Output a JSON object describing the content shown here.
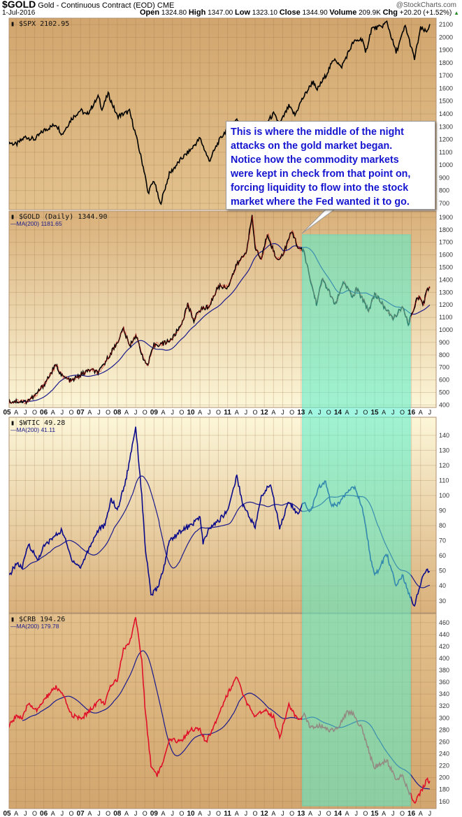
{
  "header": {
    "symbol": "$GOLD",
    "description": "Gold - Continuous Contract (EOD)",
    "exchange": "CME",
    "date": "1-Jul-2016",
    "open_label": "Open",
    "open": "1324.80",
    "high_label": "High",
    "high": "1347.00",
    "low_label": "Low",
    "low": "1323.10",
    "close_label": "Close",
    "close": "1344.90",
    "volume_label": "Volume",
    "volume": "209.9K",
    "chg_label": "Chg",
    "chg": "+20.20 (+1.52%)",
    "chg_icon": "up-triangle-icon",
    "brand": "@StockCharts.com"
  },
  "annotation": {
    "lines": [
      "This is where the middle of the night",
      "attacks on the gold market began.",
      "Notice how the commodity markets",
      "were kept in check from that point on,",
      "forcing liquidity to flow into the stock",
      "market where the Fed wanted it to go."
    ]
  },
  "colors": {
    "highlight": "#55f0cc",
    "annotation_text": "#1515d0",
    "ma_line": "#1a1a8c"
  },
  "x_axis_labels": [
    "05",
    "A",
    "J",
    "O",
    "06",
    "A",
    "J",
    "O",
    "07",
    "A",
    "J",
    "O",
    "08",
    "A",
    "J",
    "O",
    "09",
    "A",
    "J",
    "O",
    "10",
    "A",
    "J",
    "O",
    "11",
    "A",
    "J",
    "O",
    "12",
    "A",
    "J",
    "O",
    "13",
    "A",
    "J",
    "O",
    "14",
    "A",
    "J",
    "O",
    "15",
    "A",
    "J",
    "O",
    "16",
    "A",
    "J"
  ],
  "highlight_range": [
    "2013-01",
    "2016-02"
  ],
  "chart_data": [
    {
      "type": "line",
      "legend": "$SPX 2102.95",
      "ylim": [
        650,
        2150
      ],
      "yticks": [
        700,
        800,
        900,
        1000,
        1100,
        1200,
        1300,
        1400,
        1500,
        1600,
        1700,
        1800,
        1900,
        2000,
        2100
      ],
      "color": "#000000",
      "values": [
        [
          "2005-01",
          1180
        ],
        [
          "2005-04",
          1160
        ],
        [
          "2005-07",
          1220
        ],
        [
          "2005-10",
          1200
        ],
        [
          "2006-01",
          1270
        ],
        [
          "2006-05",
          1320
        ],
        [
          "2006-07",
          1240
        ],
        [
          "2006-10",
          1360
        ],
        [
          "2007-01",
          1430
        ],
        [
          "2007-03",
          1390
        ],
        [
          "2007-07",
          1540
        ],
        [
          "2007-08",
          1430
        ],
        [
          "2007-10",
          1560
        ],
        [
          "2008-01",
          1380
        ],
        [
          "2008-05",
          1420
        ],
        [
          "2008-07",
          1240
        ],
        [
          "2008-10",
          930
        ],
        [
          "2008-11",
          780
        ],
        [
          "2009-01",
          880
        ],
        [
          "2009-03",
          690
        ],
        [
          "2009-06",
          930
        ],
        [
          "2009-10",
          1050
        ],
        [
          "2010-01",
          1120
        ],
        [
          "2010-04",
          1210
        ],
        [
          "2010-07",
          1030
        ],
        [
          "2010-10",
          1180
        ],
        [
          "2011-01",
          1290
        ],
        [
          "2011-04",
          1360
        ],
        [
          "2011-08",
          1150
        ],
        [
          "2011-10",
          1220
        ],
        [
          "2012-01",
          1310
        ],
        [
          "2012-04",
          1400
        ],
        [
          "2012-06",
          1320
        ],
        [
          "2012-09",
          1460
        ],
        [
          "2012-11",
          1390
        ],
        [
          "2013-01",
          1500
        ],
        [
          "2013-05",
          1660
        ],
        [
          "2013-06",
          1580
        ],
        [
          "2013-09",
          1700
        ],
        [
          "2013-12",
          1840
        ],
        [
          "2014-02",
          1760
        ],
        [
          "2014-06",
          1960
        ],
        [
          "2014-09",
          1990
        ],
        [
          "2014-10",
          1870
        ],
        [
          "2014-12",
          2070
        ],
        [
          "2015-03",
          2080
        ],
        [
          "2015-05",
          2120
        ],
        [
          "2015-08",
          1880
        ],
        [
          "2015-11",
          2090
        ],
        [
          "2016-02",
          1830
        ],
        [
          "2016-04",
          2070
        ],
        [
          "2016-06",
          2040
        ],
        [
          "2016-07",
          2102.95
        ]
      ]
    },
    {
      "type": "line",
      "legend": "$GOLD (Daily) 1344.90",
      "ma_legend": "MA(200) 1181.65",
      "ylim": [
        380,
        1950
      ],
      "yticks": [
        400,
        500,
        600,
        700,
        800,
        900,
        1000,
        1100,
        1200,
        1300,
        1400,
        1500,
        1600,
        1700,
        1800,
        1900
      ],
      "color": "#000000",
      "accent": "#cc1111",
      "values": [
        [
          "2005-01",
          425
        ],
        [
          "2005-04",
          430
        ],
        [
          "2005-07",
          425
        ],
        [
          "2005-10",
          470
        ],
        [
          "2006-01",
          560
        ],
        [
          "2006-05",
          720
        ],
        [
          "2006-07",
          630
        ],
        [
          "2006-10",
          590
        ],
        [
          "2007-01",
          640
        ],
        [
          "2007-04",
          680
        ],
        [
          "2007-07",
          660
        ],
        [
          "2007-10",
          780
        ],
        [
          "2008-01",
          900
        ],
        [
          "2008-03",
          1010
        ],
        [
          "2008-05",
          870
        ],
        [
          "2008-07",
          960
        ],
        [
          "2008-10",
          740
        ],
        [
          "2008-11",
          720
        ],
        [
          "2009-01",
          880
        ],
        [
          "2009-04",
          890
        ],
        [
          "2009-07",
          930
        ],
        [
          "2009-10",
          1050
        ],
        [
          "2009-12",
          1200
        ],
        [
          "2010-02",
          1080
        ],
        [
          "2010-04",
          1160
        ],
        [
          "2010-07",
          1190
        ],
        [
          "2010-10",
          1350
        ],
        [
          "2011-01",
          1340
        ],
        [
          "2011-04",
          1520
        ],
        [
          "2011-07",
          1620
        ],
        [
          "2011-09",
          1900
        ],
        [
          "2011-10",
          1660
        ],
        [
          "2011-12",
          1560
        ],
        [
          "2012-02",
          1770
        ],
        [
          "2012-05",
          1560
        ],
        [
          "2012-07",
          1600
        ],
        [
          "2012-10",
          1790
        ],
        [
          "2012-12",
          1660
        ],
        [
          "2013-02",
          1620
        ],
        [
          "2013-04",
          1400
        ],
        [
          "2013-06",
          1210
        ],
        [
          "2013-08",
          1410
        ],
        [
          "2013-10",
          1310
        ],
        [
          "2013-12",
          1200
        ],
        [
          "2014-03",
          1380
        ],
        [
          "2014-06",
          1260
        ],
        [
          "2014-07",
          1330
        ],
        [
          "2014-10",
          1210
        ],
        [
          "2014-11",
          1150
        ],
        [
          "2015-01",
          1290
        ],
        [
          "2015-04",
          1190
        ],
        [
          "2015-07",
          1090
        ],
        [
          "2015-10",
          1180
        ],
        [
          "2015-12",
          1050
        ],
        [
          "2016-01",
          1110
        ],
        [
          "2016-03",
          1270
        ],
        [
          "2016-05",
          1210
        ],
        [
          "2016-06",
          1320
        ],
        [
          "2016-07",
          1344.9
        ]
      ]
    },
    {
      "type": "line",
      "legend": "$WTIC 49.28",
      "ma_legend": "MA(200) 41.11",
      "ylim": [
        22,
        152
      ],
      "yticks": [
        30,
        40,
        50,
        60,
        70,
        80,
        90,
        100,
        110,
        120,
        130,
        140
      ],
      "color": "#0a0a8a",
      "values": [
        [
          "2005-01",
          44
        ],
        [
          "2005-04",
          55
        ],
        [
          "2005-06",
          52
        ],
        [
          "2005-08",
          68
        ],
        [
          "2005-11",
          57
        ],
        [
          "2006-01",
          66
        ],
        [
          "2006-04",
          72
        ],
        [
          "2006-07",
          77
        ],
        [
          "2006-10",
          58
        ],
        [
          "2007-01",
          52
        ],
        [
          "2007-04",
          66
        ],
        [
          "2007-07",
          78
        ],
        [
          "2007-09",
          80
        ],
        [
          "2007-11",
          98
        ],
        [
          "2008-01",
          90
        ],
        [
          "2008-04",
          112
        ],
        [
          "2008-07",
          146
        ],
        [
          "2008-09",
          100
        ],
        [
          "2008-10",
          68
        ],
        [
          "2008-12",
          34
        ],
        [
          "2009-02",
          38
        ],
        [
          "2009-04",
          50
        ],
        [
          "2009-06",
          70
        ],
        [
          "2009-10",
          77
        ],
        [
          "2010-01",
          80
        ],
        [
          "2010-04",
          86
        ],
        [
          "2010-05",
          68
        ],
        [
          "2010-07",
          78
        ],
        [
          "2010-10",
          83
        ],
        [
          "2011-01",
          90
        ],
        [
          "2011-04",
          113
        ],
        [
          "2011-06",
          94
        ],
        [
          "2011-10",
          79
        ],
        [
          "2011-12",
          99
        ],
        [
          "2012-03",
          108
        ],
        [
          "2012-06",
          79
        ],
        [
          "2012-09",
          96
        ],
        [
          "2012-12",
          87
        ],
        [
          "2013-02",
          96
        ],
        [
          "2013-04",
          89
        ],
        [
          "2013-07",
          106
        ],
        [
          "2013-09",
          109
        ],
        [
          "2013-11",
          93
        ],
        [
          "2014-01",
          94
        ],
        [
          "2014-04",
          103
        ],
        [
          "2014-06",
          107
        ],
        [
          "2014-09",
          92
        ],
        [
          "2014-12",
          55
        ],
        [
          "2015-01",
          46
        ],
        [
          "2015-05",
          61
        ],
        [
          "2015-08",
          40
        ],
        [
          "2015-10",
          47
        ],
        [
          "2015-12",
          36
        ],
        [
          "2016-02",
          27
        ],
        [
          "2016-04",
          42
        ],
        [
          "2016-06",
          51
        ],
        [
          "2016-07",
          49.28
        ]
      ]
    },
    {
      "type": "line",
      "legend": "$CRB 194.26",
      "ma_legend": "MA(200) 179.78",
      "ylim": [
        148,
        475
      ],
      "yticks": [
        160,
        180,
        200,
        220,
        240,
        260,
        280,
        300,
        320,
        340,
        360,
        380,
        400,
        420,
        440,
        460
      ],
      "color": "#e0102a",
      "values": [
        [
          "2005-01",
          280
        ],
        [
          "2005-04",
          305
        ],
        [
          "2005-06",
          298
        ],
        [
          "2005-08",
          325
        ],
        [
          "2005-11",
          312
        ],
        [
          "2006-01",
          330
        ],
        [
          "2006-05",
          352
        ],
        [
          "2006-07",
          340
        ],
        [
          "2006-10",
          306
        ],
        [
          "2007-01",
          298
        ],
        [
          "2007-04",
          312
        ],
        [
          "2007-07",
          330
        ],
        [
          "2007-09",
          325
        ],
        [
          "2007-11",
          355
        ],
        [
          "2008-01",
          365
        ],
        [
          "2008-03",
          415
        ],
        [
          "2008-05",
          425
        ],
        [
          "2008-07",
          470
        ],
        [
          "2008-09",
          395
        ],
        [
          "2008-10",
          320
        ],
        [
          "2008-12",
          220
        ],
        [
          "2009-02",
          205
        ],
        [
          "2009-04",
          225
        ],
        [
          "2009-06",
          262
        ],
        [
          "2009-10",
          262
        ],
        [
          "2010-01",
          282
        ],
        [
          "2010-04",
          280
        ],
        [
          "2010-06",
          258
        ],
        [
          "2010-10",
          305
        ],
        [
          "2010-12",
          330
        ],
        [
          "2011-01",
          340
        ],
        [
          "2011-04",
          370
        ],
        [
          "2011-06",
          338
        ],
        [
          "2011-10",
          300
        ],
        [
          "2012-01",
          315
        ],
        [
          "2012-04",
          302
        ],
        [
          "2012-06",
          268
        ],
        [
          "2012-09",
          322
        ],
        [
          "2012-12",
          295
        ],
        [
          "2013-02",
          305
        ],
        [
          "2013-04",
          285
        ],
        [
          "2013-07",
          288
        ],
        [
          "2013-10",
          280
        ],
        [
          "2014-01",
          282
        ],
        [
          "2014-04",
          310
        ],
        [
          "2014-06",
          308
        ],
        [
          "2014-09",
          280
        ],
        [
          "2014-12",
          230
        ],
        [
          "2015-01",
          218
        ],
        [
          "2015-05",
          228
        ],
        [
          "2015-08",
          198
        ],
        [
          "2015-10",
          202
        ],
        [
          "2015-12",
          178
        ],
        [
          "2016-02",
          158
        ],
        [
          "2016-04",
          175
        ],
        [
          "2016-06",
          196
        ],
        [
          "2016-07",
          194.26
        ]
      ]
    }
  ]
}
